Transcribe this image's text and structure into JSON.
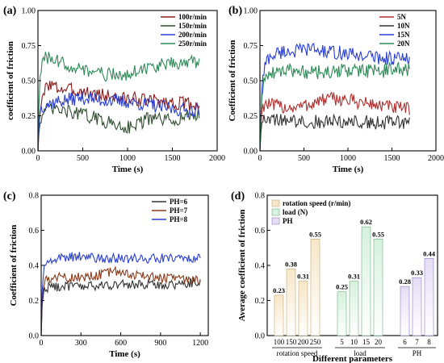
{
  "chart_data": [
    {
      "type": "line",
      "panel": "(a)",
      "xlabel": "Time (s)",
      "ylabel": "coefficient of friction",
      "xlim": [
        0,
        2000
      ],
      "ylim": [
        0,
        1.0
      ],
      "xticks": [
        "0",
        "500",
        "1000",
        "1500",
        "2000"
      ],
      "yticks": [
        "0.00",
        "0.25",
        "0.50",
        "0.75",
        "1.00"
      ],
      "legend_position": "top-right",
      "series": [
        {
          "name": "100r/min",
          "color": "#8a1c1c",
          "x": [
            0,
            20,
            60,
            100,
            150,
            200,
            300,
            400,
            500,
            600,
            700,
            800,
            900,
            1000,
            1100,
            1200,
            1300,
            1400,
            1500,
            1600,
            1700,
            1800
          ],
          "y": [
            0,
            0.28,
            0.38,
            0.48,
            0.47,
            0.45,
            0.44,
            0.43,
            0.42,
            0.41,
            0.4,
            0.39,
            0.38,
            0.37,
            0.37,
            0.36,
            0.36,
            0.35,
            0.34,
            0.34,
            0.33,
            0.33
          ]
        },
        {
          "name": "150r/min",
          "color": "#2f4f2f",
          "x": [
            0,
            20,
            60,
            100,
            150,
            200,
            300,
            400,
            500,
            600,
            700,
            800,
            900,
            1000,
            1100,
            1200,
            1300,
            1400,
            1500,
            1600,
            1700,
            1800
          ],
          "y": [
            0,
            0.22,
            0.27,
            0.29,
            0.3,
            0.29,
            0.28,
            0.27,
            0.26,
            0.24,
            0.22,
            0.2,
            0.18,
            0.17,
            0.19,
            0.22,
            0.23,
            0.22,
            0.21,
            0.24,
            0.25,
            0.26
          ]
        },
        {
          "name": "200r/min",
          "color": "#2a3fd6",
          "x": [
            0,
            20,
            60,
            100,
            150,
            200,
            300,
            400,
            500,
            600,
            700,
            800,
            900,
            1000,
            1100,
            1200,
            1300,
            1400,
            1500,
            1600,
            1700,
            1800
          ],
          "y": [
            0,
            0.3,
            0.32,
            0.33,
            0.34,
            0.35,
            0.36,
            0.37,
            0.38,
            0.37,
            0.36,
            0.36,
            0.35,
            0.35,
            0.34,
            0.33,
            0.32,
            0.31,
            0.3,
            0.29,
            0.29,
            0.3
          ]
        },
        {
          "name": "250r/min",
          "color": "#2e8b57",
          "x": [
            0,
            20,
            60,
            100,
            150,
            200,
            300,
            400,
            500,
            600,
            700,
            800,
            900,
            1000,
            1100,
            1200,
            1300,
            1400,
            1500,
            1600,
            1700,
            1800
          ],
          "y": [
            0,
            0.55,
            0.65,
            0.66,
            0.65,
            0.64,
            0.62,
            0.6,
            0.58,
            0.56,
            0.55,
            0.54,
            0.54,
            0.55,
            0.57,
            0.59,
            0.6,
            0.61,
            0.62,
            0.63,
            0.64,
            0.62
          ]
        }
      ]
    },
    {
      "type": "line",
      "panel": "(b)",
      "xlabel": "Time (s)",
      "ylabel": "Coefficient of friction",
      "xlim": [
        0,
        2000
      ],
      "ylim": [
        0,
        1.0
      ],
      "xticks": [
        "0",
        "500",
        "1000",
        "1500",
        "2000"
      ],
      "yticks": [
        "0.00",
        "0.25",
        "0.50",
        "0.75",
        "1.00"
      ],
      "legend_position": "top-right",
      "series": [
        {
          "name": "5N",
          "color": "#b03030",
          "x": [
            0,
            20,
            60,
            100,
            150,
            200,
            300,
            400,
            500,
            600,
            700,
            800,
            900,
            1000,
            1100,
            1200,
            1300,
            1400,
            1500,
            1600,
            1700
          ],
          "y": [
            0,
            0.3,
            0.34,
            0.33,
            0.32,
            0.32,
            0.31,
            0.31,
            0.32,
            0.34,
            0.36,
            0.37,
            0.37,
            0.36,
            0.35,
            0.34,
            0.33,
            0.32,
            0.31,
            0.3,
            0.3
          ]
        },
        {
          "name": "10N",
          "color": "#333333",
          "x": [
            0,
            20,
            60,
            100,
            150,
            200,
            300,
            400,
            500,
            600,
            700,
            800,
            900,
            1000,
            1100,
            1200,
            1300,
            1400,
            1500,
            1600,
            1700
          ],
          "y": [
            0,
            0.22,
            0.25,
            0.24,
            0.23,
            0.22,
            0.21,
            0.21,
            0.21,
            0.21,
            0.21,
            0.21,
            0.21,
            0.21,
            0.21,
            0.21,
            0.2,
            0.2,
            0.2,
            0.21,
            0.2
          ]
        },
        {
          "name": "15N",
          "color": "#2a3fd6",
          "x": [
            0,
            20,
            60,
            100,
            150,
            200,
            300,
            400,
            500,
            600,
            700,
            800,
            900,
            1000,
            1100,
            1200,
            1300,
            1400,
            1500,
            1600,
            1700
          ],
          "y": [
            0,
            0.45,
            0.62,
            0.66,
            0.68,
            0.7,
            0.71,
            0.71,
            0.72,
            0.73,
            0.71,
            0.7,
            0.7,
            0.69,
            0.68,
            0.68,
            0.67,
            0.66,
            0.66,
            0.66,
            0.65
          ]
        },
        {
          "name": "20N",
          "color": "#2e8b57",
          "x": [
            0,
            20,
            60,
            100,
            150,
            200,
            300,
            400,
            500,
            600,
            700,
            800,
            900,
            1000,
            1100,
            1200,
            1300,
            1400,
            1500,
            1600,
            1700
          ],
          "y": [
            0,
            0.4,
            0.52,
            0.55,
            0.56,
            0.57,
            0.57,
            0.57,
            0.56,
            0.56,
            0.56,
            0.56,
            0.57,
            0.57,
            0.57,
            0.57,
            0.57,
            0.57,
            0.58,
            0.58,
            0.58
          ]
        }
      ]
    },
    {
      "type": "line",
      "panel": "(c)",
      "xlabel": "Time (s)",
      "ylabel": "Coefficient of friction",
      "xlim": [
        0,
        1260
      ],
      "ylim": [
        0,
        0.8
      ],
      "xticks": [
        "0",
        "300",
        "600",
        "900",
        "1200"
      ],
      "yticks": [
        "0.0",
        "0.2",
        "0.4",
        "0.6",
        "0.8"
      ],
      "legend_position": "top-right",
      "series": [
        {
          "name": "PH=6",
          "color": "#333333",
          "x": [
            0,
            10,
            30,
            60,
            100,
            150,
            200,
            300,
            400,
            500,
            600,
            700,
            800,
            900,
            1000,
            1100,
            1200
          ],
          "y": [
            0,
            0.22,
            0.27,
            0.28,
            0.28,
            0.28,
            0.28,
            0.28,
            0.28,
            0.29,
            0.29,
            0.29,
            0.29,
            0.29,
            0.29,
            0.3,
            0.3
          ]
        },
        {
          "name": "PH=7",
          "color": "#8b3a1a",
          "x": [
            0,
            10,
            30,
            60,
            100,
            150,
            200,
            300,
            400,
            500,
            600,
            700,
            800,
            900,
            1000,
            1100,
            1200
          ],
          "y": [
            0,
            0.26,
            0.31,
            0.33,
            0.33,
            0.33,
            0.33,
            0.33,
            0.34,
            0.36,
            0.37,
            0.35,
            0.34,
            0.33,
            0.33,
            0.32,
            0.32
          ]
        },
        {
          "name": "PH=8",
          "color": "#2a3fd6",
          "x": [
            0,
            10,
            30,
            60,
            100,
            150,
            200,
            300,
            400,
            500,
            600,
            700,
            800,
            900,
            1000,
            1100,
            1200
          ],
          "y": [
            0,
            0.32,
            0.4,
            0.43,
            0.44,
            0.44,
            0.45,
            0.45,
            0.44,
            0.44,
            0.44,
            0.44,
            0.44,
            0.44,
            0.44,
            0.44,
            0.45
          ]
        }
      ]
    },
    {
      "type": "bar",
      "panel": "(d)",
      "xlabel": "Different parameters",
      "ylabel": "Average coefficient of friction",
      "ylim": [
        0,
        0.8
      ],
      "yticks": [
        "0.0",
        "0.2",
        "0.4",
        "0.6",
        "0.8"
      ],
      "legend_position": "top-left",
      "legend": [
        {
          "name": "rotation speed (r/min)",
          "color": "#f6e7c8",
          "edge": "#c9a86b"
        },
        {
          "name": "load (N)",
          "color": "#d6f1de",
          "edge": "#6fb082"
        },
        {
          "name": "PH",
          "color": "#e6ddf5",
          "edge": "#8f7fc3"
        }
      ],
      "groups": [
        {
          "name": "rotation speed",
          "categories": [
            "100",
            "150",
            "200",
            "250"
          ],
          "values": [
            0.23,
            0.38,
            0.31,
            0.55
          ],
          "labels": [
            "0.23",
            "0.38",
            "0.31",
            "0.55"
          ]
        },
        {
          "name": "load",
          "categories": [
            "5",
            "10",
            "15",
            "20"
          ],
          "values": [
            0.25,
            0.31,
            0.62,
            0.55
          ],
          "labels": [
            "0.25",
            "0.31",
            "0.62",
            "0.55"
          ]
        },
        {
          "name": "PH",
          "categories": [
            "6",
            "7",
            "8"
          ],
          "values": [
            0.28,
            0.33,
            0.44
          ],
          "labels": [
            "0.28",
            "0.33",
            "0.44"
          ]
        }
      ]
    }
  ]
}
